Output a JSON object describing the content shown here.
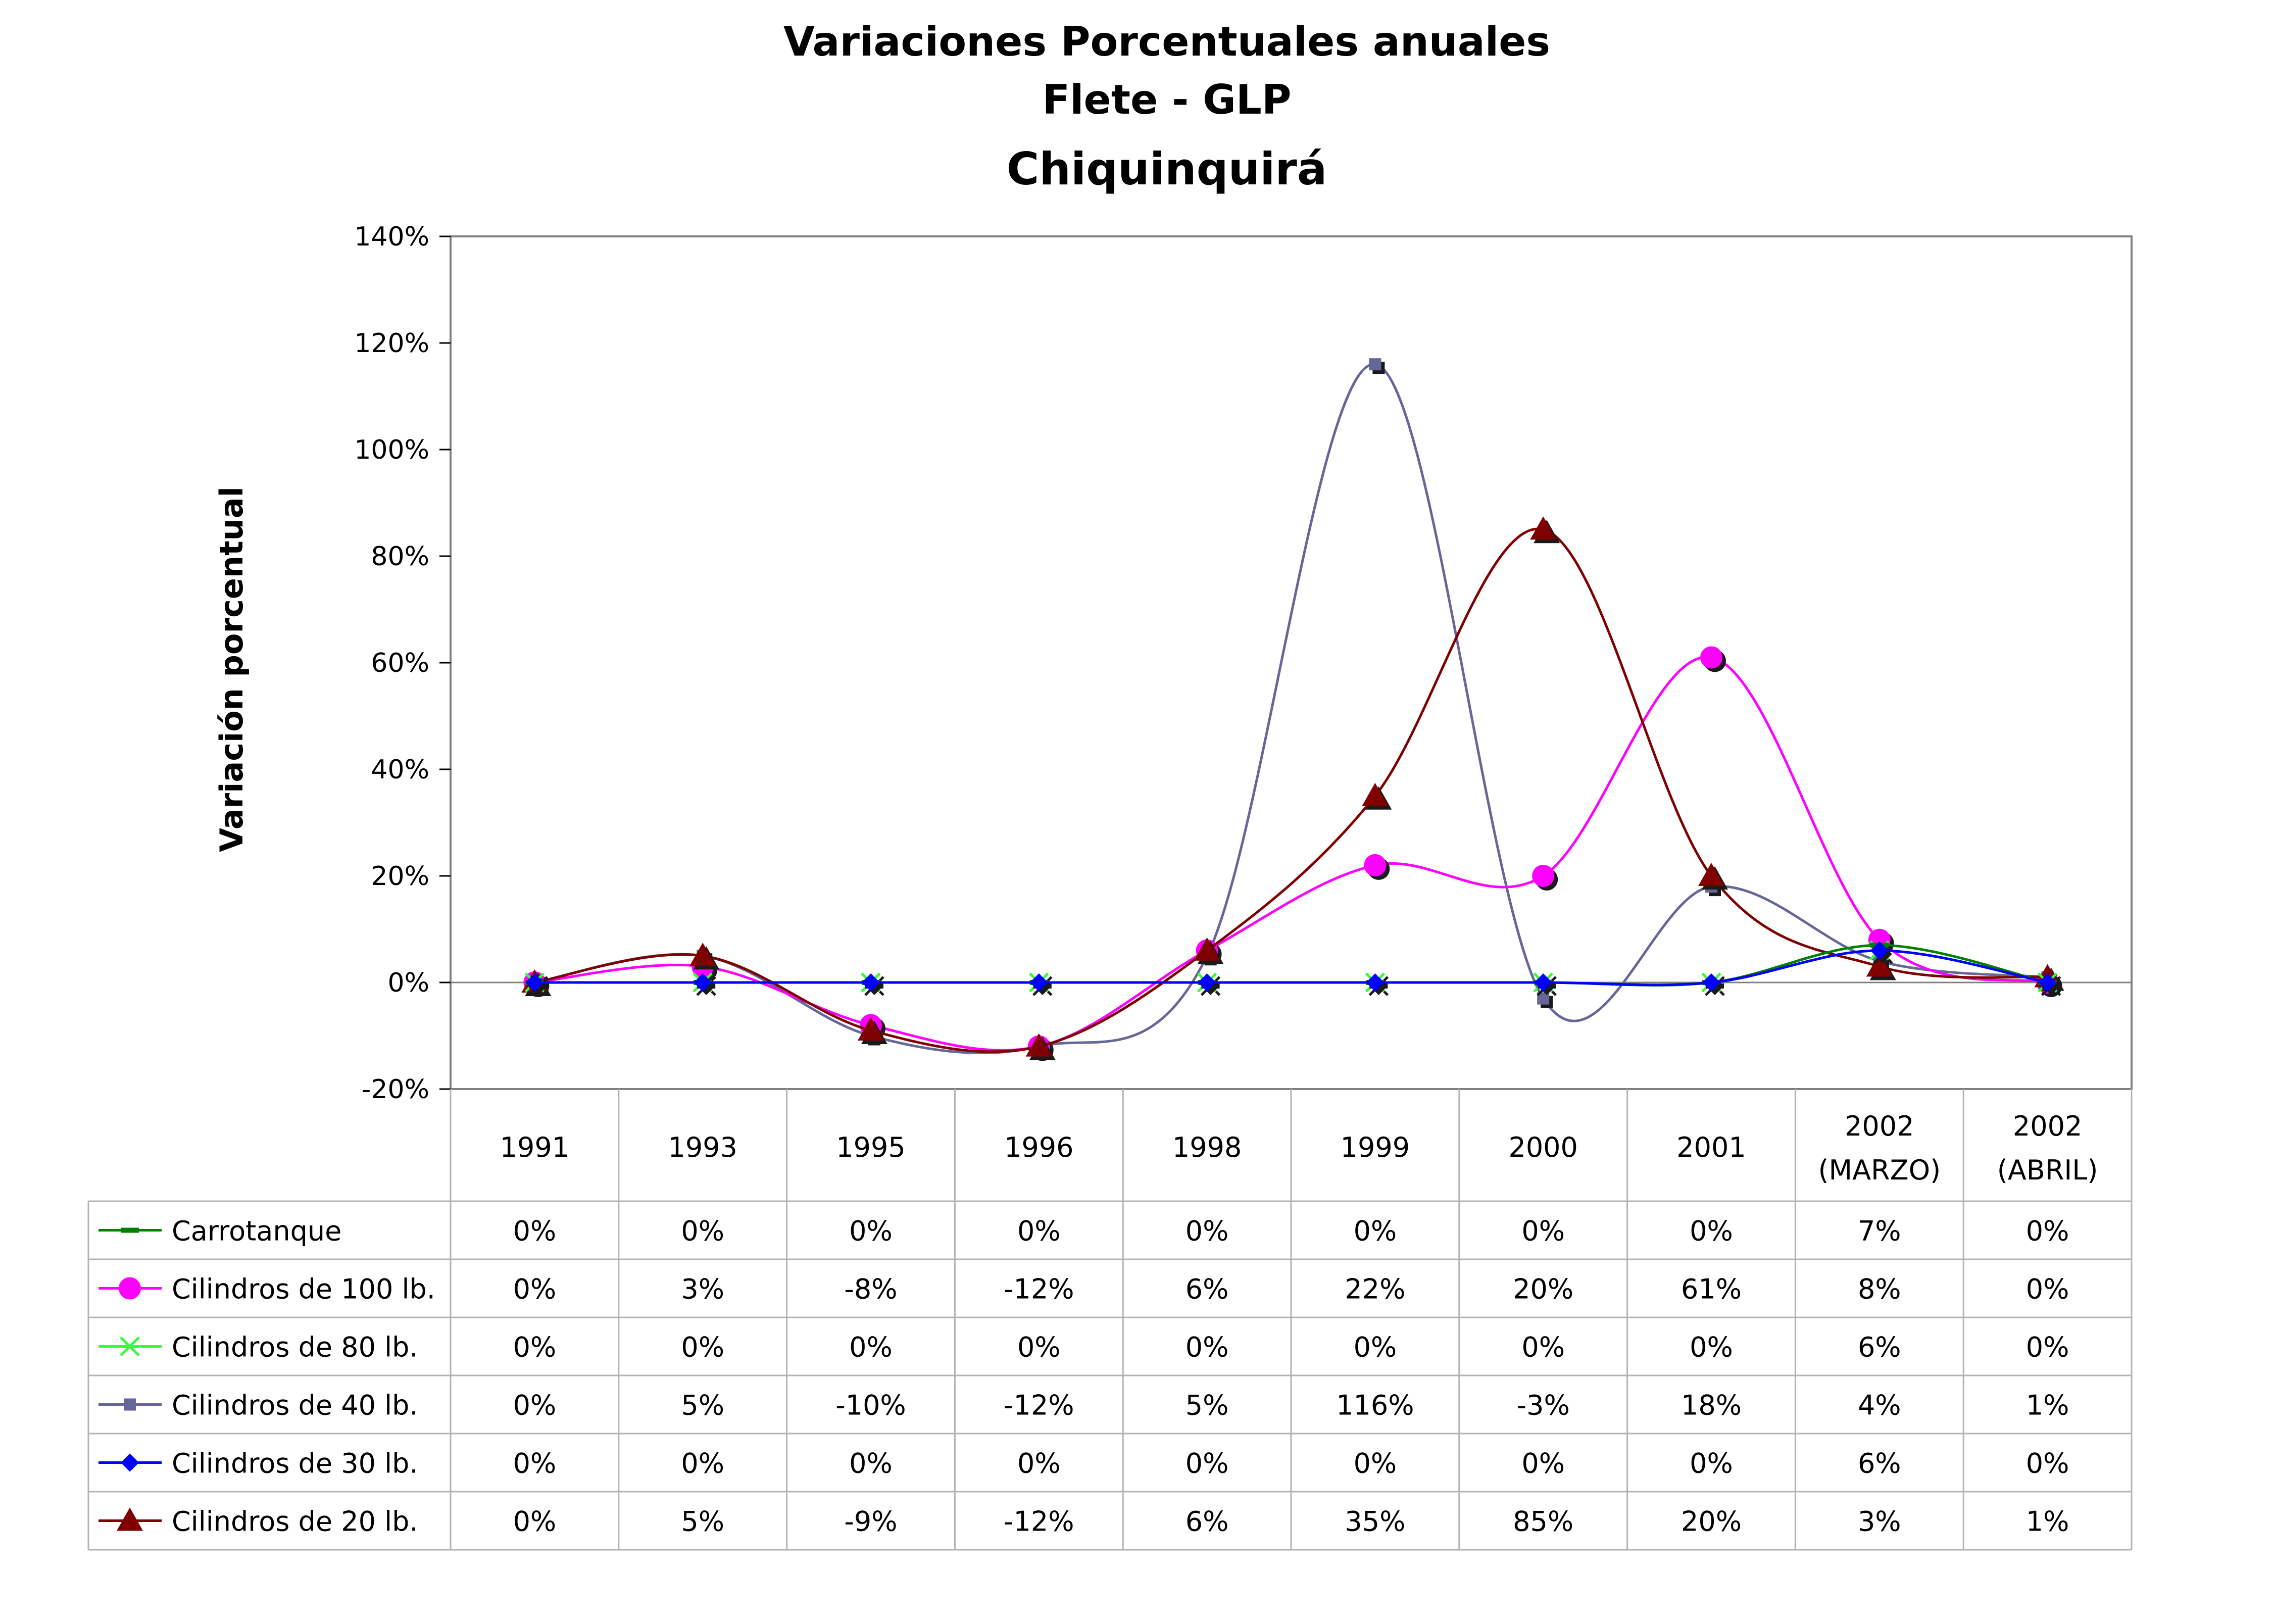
{
  "chart_data": {
    "type": "line",
    "title": "Variaciones Porcentuales anuales",
    "subtitle": "Flete - GLP",
    "subtitle2": "Chiquinquirá",
    "ylabel": "Variación porcentual",
    "ylim": [
      -20,
      140
    ],
    "yticks": [
      140,
      120,
      100,
      80,
      60,
      40,
      20,
      0,
      -20
    ],
    "ytick_labels": [
      "140%",
      "120%",
      "100%",
      "80%",
      "60%",
      "40%",
      "20%",
      "0%",
      "-20%"
    ],
    "categories": [
      [
        "1991"
      ],
      [
        "1993"
      ],
      [
        "1995"
      ],
      [
        "1996"
      ],
      [
        "1998"
      ],
      [
        "1999"
      ],
      [
        "2000"
      ],
      [
        "2001"
      ],
      [
        "2002",
        "(MARZO)"
      ],
      [
        "2002",
        "(ABRIL)"
      ]
    ],
    "grid": "horizontal zero line only",
    "legend": "data table rows",
    "series": [
      {
        "name": "Carrotanque",
        "color": "#008000",
        "marker": "dash",
        "values": [
          0,
          0,
          0,
          0,
          0,
          0,
          0,
          0,
          7,
          0
        ],
        "labels": [
          "0%",
          "0%",
          "0%",
          "0%",
          "0%",
          "0%",
          "0%",
          "0%",
          "7%",
          "0%"
        ]
      },
      {
        "name": "Cilindros de 100 lb.",
        "color": "#ff00ff",
        "marker": "circle",
        "values": [
          0,
          3,
          -8,
          -12,
          6,
          22,
          20,
          61,
          8,
          0
        ],
        "labels": [
          "0%",
          "3%",
          "-8%",
          "-12%",
          "6%",
          "22%",
          "20%",
          "61%",
          "8%",
          "0%"
        ]
      },
      {
        "name": "Cilindros de 80 lb.",
        "color": "#33ff33",
        "marker": "x",
        "values": [
          0,
          0,
          0,
          0,
          0,
          0,
          0,
          0,
          6,
          0
        ],
        "labels": [
          "0%",
          "0%",
          "0%",
          "0%",
          "0%",
          "0%",
          "0%",
          "0%",
          "6%",
          "0%"
        ]
      },
      {
        "name": "Cilindros de 40 lb.",
        "color": "#666699",
        "marker": "square",
        "values": [
          0,
          5,
          -10,
          -12,
          5,
          116,
          -3,
          18,
          4,
          1
        ],
        "labels": [
          "0%",
          "5%",
          "-10%",
          "-12%",
          "5%",
          "116%",
          "-3%",
          "18%",
          "4%",
          "1%"
        ]
      },
      {
        "name": "Cilindros de 30 lb.",
        "color": "#0000ff",
        "marker": "diamond",
        "values": [
          0,
          0,
          0,
          0,
          0,
          0,
          0,
          0,
          6,
          0
        ],
        "labels": [
          "0%",
          "0%",
          "0%",
          "0%",
          "0%",
          "0%",
          "0%",
          "0%",
          "6%",
          "0%"
        ]
      },
      {
        "name": "Cilindros de 20 lb.",
        "color": "#800000",
        "marker": "triangle",
        "values": [
          0,
          5,
          -9,
          -12,
          6,
          35,
          85,
          20,
          3,
          1
        ],
        "labels": [
          "0%",
          "5%",
          "-9%",
          "-12%",
          "6%",
          "35%",
          "85%",
          "20%",
          "3%",
          "1%"
        ]
      }
    ]
  }
}
